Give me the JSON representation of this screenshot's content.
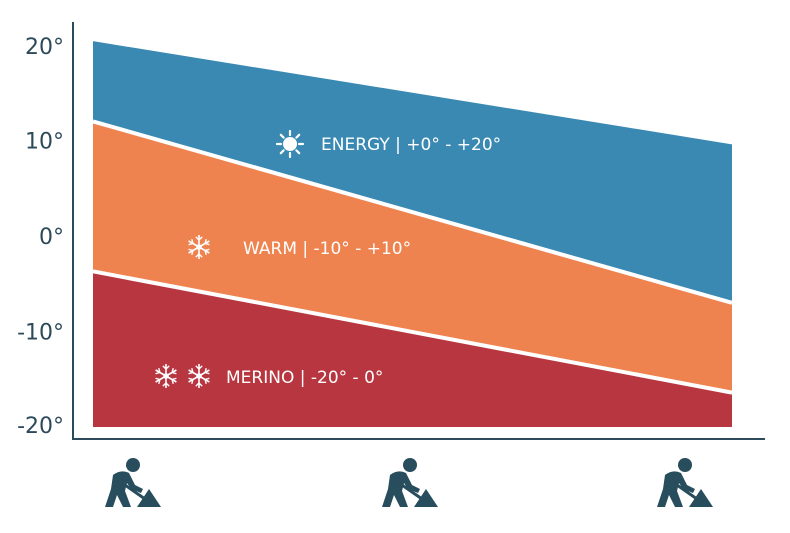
{
  "chart_data": {
    "type": "area",
    "x_labels": [
      "",
      "",
      ""
    ],
    "y_ticks": [
      "20°",
      "10°",
      "0°",
      "-10°",
      "-20°"
    ],
    "ylim": [
      -20,
      20
    ],
    "bottom": -20,
    "x": [
      0,
      1
    ],
    "series": [
      {
        "name": "MERINO | -20° - 0°",
        "color": "#b8363f",
        "upper": [
          -3.7,
          -16.4
        ],
        "icons": [
          "snowflake-icon",
          "snowflake-icon"
        ]
      },
      {
        "name": "WARM | -10° - +10°",
        "color": "#ee834f",
        "upper": [
          12.0,
          -7.0
        ],
        "icons": [
          "snowflake-icon"
        ]
      },
      {
        "name": "ENERGY | +0° - +20°",
        "color": "#3a89b3",
        "upper": [
          20.4,
          9.6
        ],
        "icons": [
          "sun-icon"
        ]
      }
    ],
    "x_icons": [
      "worker-shoveling-icon",
      "worker-shoveling-icon",
      "worker-shoveling-icon"
    ],
    "boundary_color": "#ffffff",
    "axis_color": "#2d4a5a",
    "grid": false,
    "legend": "inline"
  }
}
